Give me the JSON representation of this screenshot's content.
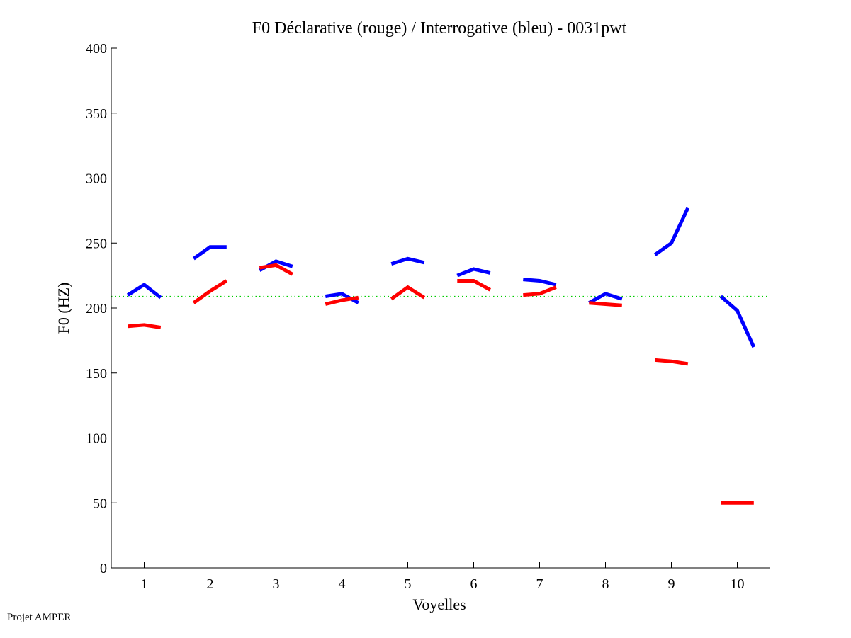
{
  "chart_data": {
    "type": "line",
    "title": "F0 Déclarative (rouge) / Interrogative (bleu) - 0031pwt",
    "xlabel": "Voyelles",
    "ylabel": "F0 (HZ)",
    "xlim": [
      0.5,
      10.5
    ],
    "ylim": [
      0,
      400
    ],
    "x_ticks": [
      1,
      2,
      3,
      4,
      5,
      6,
      7,
      8,
      9,
      10
    ],
    "x_tick_labels": [
      "1",
      "2",
      "3",
      "4",
      "5",
      "6",
      "7",
      "8",
      "9",
      "10"
    ],
    "y_ticks": [
      0,
      50,
      100,
      150,
      200,
      250,
      300,
      350,
      400
    ],
    "y_tick_labels": [
      "0",
      "50",
      "100",
      "150",
      "200",
      "250",
      "300",
      "350",
      "400"
    ],
    "grid": false,
    "reference_line": {
      "y": 209,
      "color": "#00cc00",
      "style": "dotted"
    },
    "segment_offsets": [
      -0.25,
      0,
      0.25
    ],
    "series": [
      {
        "name": "Interrogative (bleu)",
        "color": "#0000ff",
        "segments": [
          {
            "vowel": 1,
            "values": [
              210,
              218,
              208
            ]
          },
          {
            "vowel": 2,
            "values": [
              238,
              247,
              247
            ]
          },
          {
            "vowel": 3,
            "values": [
              229,
              236,
              232
            ]
          },
          {
            "vowel": 4,
            "values": [
              209,
              211,
              204
            ]
          },
          {
            "vowel": 5,
            "values": [
              234,
              238,
              235
            ]
          },
          {
            "vowel": 6,
            "values": [
              225,
              230,
              227
            ]
          },
          {
            "vowel": 7,
            "values": [
              222,
              221,
              218
            ]
          },
          {
            "vowel": 8,
            "values": [
              204,
              211,
              207
            ]
          },
          {
            "vowel": 9,
            "values": [
              241,
              250,
              277
            ]
          },
          {
            "vowel": 10,
            "values": [
              209,
              198,
              170
            ]
          }
        ]
      },
      {
        "name": "Déclarative (rouge)",
        "color": "#ff0000",
        "segments": [
          {
            "vowel": 1,
            "values": [
              186,
              187,
              185
            ]
          },
          {
            "vowel": 2,
            "values": [
              204,
              213,
              221
            ]
          },
          {
            "vowel": 3,
            "values": [
              231,
              233,
              226
            ]
          },
          {
            "vowel": 4,
            "values": [
              203,
              206,
              208
            ]
          },
          {
            "vowel": 5,
            "values": [
              207,
              216,
              208
            ]
          },
          {
            "vowel": 6,
            "values": [
              221,
              221,
              214
            ]
          },
          {
            "vowel": 7,
            "values": [
              210,
              211,
              216
            ]
          },
          {
            "vowel": 8,
            "values": [
              204,
              203,
              202
            ]
          },
          {
            "vowel": 9,
            "values": [
              160,
              159,
              157
            ]
          },
          {
            "vowel": 10,
            "values": [
              50,
              50,
              50
            ]
          }
        ]
      }
    ]
  },
  "footer": {
    "text": "Projet AMPER"
  }
}
